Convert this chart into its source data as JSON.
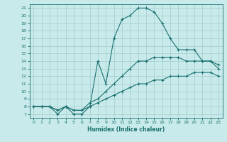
{
  "xlabel": "Humidex (Indice chaleur)",
  "bg_color": "#c8eaea",
  "grid_color": "#a8d0d0",
  "line_color": "#1a7070",
  "xlim": [
    -0.5,
    23.5
  ],
  "ylim": [
    6.5,
    21.5
  ],
  "xticks": [
    0,
    1,
    2,
    3,
    4,
    5,
    6,
    7,
    8,
    9,
    10,
    11,
    12,
    13,
    14,
    15,
    16,
    17,
    18,
    19,
    20,
    21,
    22,
    23
  ],
  "yticks": [
    7,
    8,
    9,
    10,
    11,
    12,
    13,
    14,
    15,
    16,
    17,
    18,
    19,
    20,
    21
  ],
  "line1_x": [
    0,
    1,
    2,
    3,
    4,
    5,
    6,
    7,
    8,
    9,
    10,
    11,
    12,
    13,
    14,
    15,
    16,
    17,
    18,
    19,
    20,
    21,
    22,
    23
  ],
  "line1_y": [
    8,
    8,
    8,
    7.5,
    8,
    7.5,
    7.5,
    8,
    8.5,
    9,
    9.5,
    10,
    10.5,
    11,
    11,
    11.5,
    11.5,
    12,
    12,
    12,
    12.5,
    12.5,
    12.5,
    12
  ],
  "line2_x": [
    0,
    1,
    2,
    3,
    4,
    5,
    6,
    7,
    8,
    9,
    10,
    11,
    12,
    13,
    14,
    15,
    16,
    17,
    18,
    19,
    20,
    21,
    22,
    23
  ],
  "line2_y": [
    8,
    8,
    8,
    7.5,
    8,
    7.5,
    7.5,
    8.5,
    9,
    10,
    11,
    12,
    13,
    14,
    14,
    14.5,
    14.5,
    14.5,
    14.5,
    14,
    14,
    14,
    14,
    13.5
  ],
  "line3_x": [
    0,
    1,
    2,
    3,
    4,
    5,
    6,
    7,
    8,
    9,
    10,
    11,
    12,
    13,
    14,
    15,
    16,
    17,
    18,
    19,
    20,
    21,
    22,
    23
  ],
  "line3_y": [
    8,
    8,
    8,
    7,
    8,
    7,
    7,
    8,
    14,
    11,
    17,
    19.5,
    20,
    21,
    21,
    20.5,
    19,
    17,
    15.5,
    15.5,
    15.5,
    14,
    14,
    13
  ]
}
